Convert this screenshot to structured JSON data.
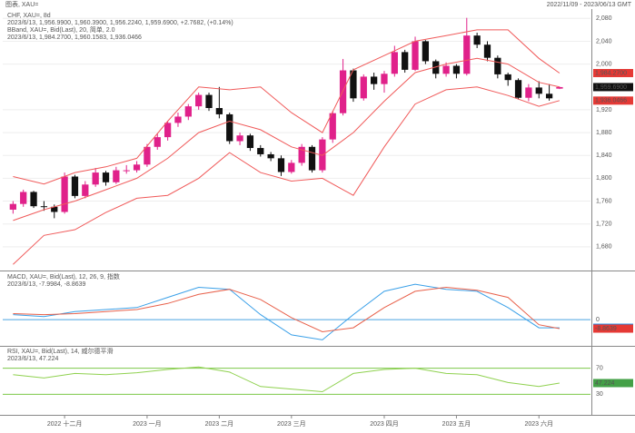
{
  "title": "图表, XAU=",
  "range": "2022/11/09 - 2023/06/13 GMT",
  "chart_data": [
    {
      "type": "candlestick",
      "up_color": "#e0218a",
      "down_color": "#111111",
      "grid": true,
      "grid_color": "#eeeeee",
      "header": [
        {
          "text": "CHF, XAU=, 8d",
          "color": "#333333"
        },
        {
          "text": "2023/6/13, 1,956.9900, 1,960.3900, 1,956.2240, 1,959.6900, +2.7682, (+0.14%)",
          "color": "#333333"
        },
        {
          "text": "BBand, XAU=, Bid(Last), 20, 简单, 2.0",
          "color": "#e53935"
        },
        {
          "text": "2023/6/13, 1,984.2700, 1,960.1583, 1,936.0466",
          "color": "#e53935"
        }
      ],
      "ylim": [
        1640,
        2090
      ],
      "yticks": [
        {
          "value": 1680,
          "label": "1,680"
        },
        {
          "value": 1720,
          "label": "1,720"
        },
        {
          "value": 1760,
          "label": "1,760"
        },
        {
          "value": 1800,
          "label": "1,800"
        },
        {
          "value": 1840,
          "label": "1,840"
        },
        {
          "value": 1880,
          "label": "1,880"
        },
        {
          "value": 1920,
          "label": "1,920"
        },
        {
          "value": 2000,
          "label": "2,000"
        },
        {
          "value": 2040,
          "label": "2,040"
        },
        {
          "value": 2080,
          "label": "2,080"
        }
      ],
      "candles": [
        [
          1745,
          1760,
          1738,
          1755
        ],
        [
          1755,
          1780,
          1750,
          1776
        ],
        [
          1776,
          1778,
          1748,
          1751
        ],
        [
          1751,
          1760,
          1743,
          1750
        ],
        [
          1750,
          1754,
          1730,
          1741
        ],
        [
          1741,
          1810,
          1738,
          1803
        ],
        [
          1803,
          1806,
          1765,
          1769
        ],
        [
          1769,
          1795,
          1765,
          1789
        ],
        [
          1789,
          1818,
          1785,
          1810
        ],
        [
          1810,
          1813,
          1787,
          1793
        ],
        [
          1793,
          1820,
          1790,
          1814
        ],
        [
          1814,
          1823,
          1808,
          1814
        ],
        [
          1814,
          1830,
          1810,
          1824
        ],
        [
          1824,
          1860,
          1820,
          1855
        ],
        [
          1855,
          1878,
          1850,
          1872
        ],
        [
          1872,
          1900,
          1866,
          1897
        ],
        [
          1897,
          1915,
          1890,
          1908
        ],
        [
          1908,
          1930,
          1902,
          1926
        ],
        [
          1926,
          1950,
          1920,
          1946
        ],
        [
          1946,
          1950,
          1918,
          1923
        ],
        [
          1923,
          1960,
          1905,
          1912
        ],
        [
          1912,
          1915,
          1860,
          1865
        ],
        [
          1865,
          1880,
          1858,
          1875
        ],
        [
          1875,
          1878,
          1848,
          1853
        ],
        [
          1853,
          1858,
          1838,
          1842
        ],
        [
          1842,
          1846,
          1830,
          1835
        ],
        [
          1835,
          1840,
          1804,
          1811
        ],
        [
          1811,
          1832,
          1808,
          1827
        ],
        [
          1827,
          1860,
          1822,
          1855
        ],
        [
          1855,
          1858,
          1810,
          1814
        ],
        [
          1814,
          1872,
          1810,
          1868
        ],
        [
          1868,
          1918,
          1862,
          1914
        ],
        [
          1914,
          2009,
          1910,
          1989
        ],
        [
          1989,
          1992,
          1934,
          1940
        ],
        [
          1940,
          1982,
          1936,
          1978
        ],
        [
          1978,
          1985,
          1955,
          1965
        ],
        [
          1965,
          1988,
          1950,
          1983
        ],
        [
          1983,
          2032,
          1978,
          2021
        ],
        [
          2021,
          2025,
          1985,
          1990
        ],
        [
          1990,
          2048,
          1988,
          2040
        ],
        [
          2040,
          2042,
          2000,
          2005
        ],
        [
          2005,
          2008,
          1975,
          1983
        ],
        [
          1983,
          2003,
          1978,
          1997
        ],
        [
          1997,
          2000,
          1975,
          1983
        ],
        [
          1983,
          2081,
          1980,
          2050
        ],
        [
          2050,
          2055,
          2028,
          2034
        ],
        [
          2034,
          2040,
          2005,
          2011
        ],
        [
          2011,
          2015,
          1975,
          1982
        ],
        [
          1982,
          1985,
          1962,
          1972
        ],
        [
          1972,
          1975,
          1938,
          1941
        ],
        [
          1941,
          1965,
          1935,
          1959
        ],
        [
          1959,
          1970,
          1940,
          1948
        ],
        [
          1948,
          1965,
          1936,
          1940
        ],
        [
          1956.99,
          1960.39,
          1956.224,
          1959.69
        ]
      ],
      "series": [
        {
          "color": "#f05a5a",
          "x": [
            0,
            3,
            6,
            9,
            12,
            15,
            18,
            21,
            24,
            27,
            30,
            33,
            36,
            39,
            42,
            45,
            48,
            51,
            53
          ],
          "values": [
            1803,
            1790,
            1810,
            1820,
            1835,
            1900,
            1960,
            1955,
            1960,
            1915,
            1880,
            1990,
            2015,
            2040,
            2050,
            2060,
            2060,
            2010,
            1984.27
          ]
        },
        {
          "color": "#f05a5a",
          "x": [
            0,
            3,
            6,
            9,
            12,
            15,
            18,
            21,
            24,
            27,
            30,
            33,
            36,
            39,
            42,
            45,
            48,
            51,
            53
          ],
          "values": [
            1726,
            1745,
            1760,
            1780,
            1800,
            1835,
            1880,
            1900,
            1885,
            1855,
            1840,
            1880,
            1935,
            1985,
            2000,
            2010,
            2000,
            1968,
            1960.16
          ]
        },
        {
          "color": "#f05a5a",
          "x": [
            0,
            3,
            6,
            9,
            12,
            15,
            18,
            21,
            24,
            27,
            30,
            33,
            36,
            39,
            42,
            45,
            48,
            51,
            53
          ],
          "values": [
            1649,
            1700,
            1710,
            1740,
            1765,
            1770,
            1800,
            1845,
            1810,
            1795,
            1800,
            1770,
            1855,
            1930,
            1955,
            1960,
            1945,
            1926,
            1936.05
          ]
        }
      ],
      "badges": [
        {
          "value": 1984.27,
          "label": "1,984.2700",
          "color": "#e53935"
        },
        {
          "value": 1959.69,
          "label": "1,959.6900",
          "color": "#111111"
        },
        {
          "value": 1936.05,
          "label": "1,936.0466",
          "color": "#e53935"
        }
      ]
    },
    {
      "type": "line",
      "grid": true,
      "grid_color": "#4aa3e0",
      "header": [
        {
          "text": "MACD, XAU=, Bid(Last), 12, 26, 9, 指数",
          "color": "#1e88e5"
        },
        {
          "text": "2023/6/13, -7.9984, -8.8639",
          "color": "#1e88e5"
        }
      ],
      "ylim": [
        -25,
        45
      ],
      "yticks": [
        0
      ],
      "series": [
        {
          "color": "#3aa0e8",
          "x": [
            0,
            3,
            6,
            9,
            12,
            15,
            18,
            21,
            24,
            27,
            30,
            33,
            36,
            39,
            42,
            45,
            48,
            51,
            53
          ],
          "values": [
            5,
            3,
            8,
            10,
            12,
            22,
            32,
            30,
            5,
            -15,
            -20,
            5,
            28,
            35,
            30,
            28,
            12,
            -8,
            -7.9984
          ]
        },
        {
          "color": "#e8604a",
          "x": [
            0,
            3,
            6,
            9,
            12,
            15,
            18,
            21,
            24,
            27,
            30,
            33,
            36,
            39,
            42,
            45,
            48,
            51,
            53
          ],
          "values": [
            6,
            5,
            6,
            8,
            10,
            16,
            25,
            30,
            20,
            2,
            -12,
            -8,
            12,
            28,
            32,
            29,
            22,
            -5,
            -8.8639
          ]
        }
      ],
      "badges": [
        {
          "value": -7.9984,
          "label": "-7.9984",
          "color": "#1e88e5"
        },
        {
          "value": -8.8639,
          "label": "-8.8639",
          "color": "#e53935"
        }
      ]
    },
    {
      "type": "line",
      "grid": true,
      "grid_color": "#7dc84a",
      "header": [
        {
          "text": "RSI, XAU=, Bid(Last), 14, 威尔德平滑",
          "color": "#43a047"
        },
        {
          "text": "2023/6/13, 47.224",
          "color": "#43a047"
        }
      ],
      "ylim": [
        0,
        100
      ],
      "yticks": [
        30,
        70
      ],
      "series": [
        {
          "color": "#8fd14f",
          "x": [
            0,
            3,
            6,
            9,
            12,
            15,
            18,
            21,
            24,
            27,
            30,
            33,
            36,
            39,
            42,
            45,
            48,
            51,
            53
          ],
          "values": [
            60,
            55,
            62,
            60,
            63,
            68,
            72,
            64,
            42,
            38,
            34,
            62,
            68,
            70,
            62,
            60,
            48,
            42,
            47.224
          ]
        }
      ],
      "badges": [
        {
          "value": 47.224,
          "label": "47.224",
          "color": "#43a047"
        }
      ],
      "xlim": [
        -1,
        56
      ],
      "xticks": [
        {
          "value": 5,
          "label": "2022 十二月"
        },
        {
          "value": 13,
          "label": "2023 一月"
        },
        {
          "value": 20,
          "label": "2023 二月"
        },
        {
          "value": 27,
          "label": "2023 三月"
        },
        {
          "value": 36,
          "label": "2023 四月"
        },
        {
          "value": 43,
          "label": "2023 五月"
        },
        {
          "value": 51,
          "label": "2023 六月"
        }
      ]
    }
  ]
}
